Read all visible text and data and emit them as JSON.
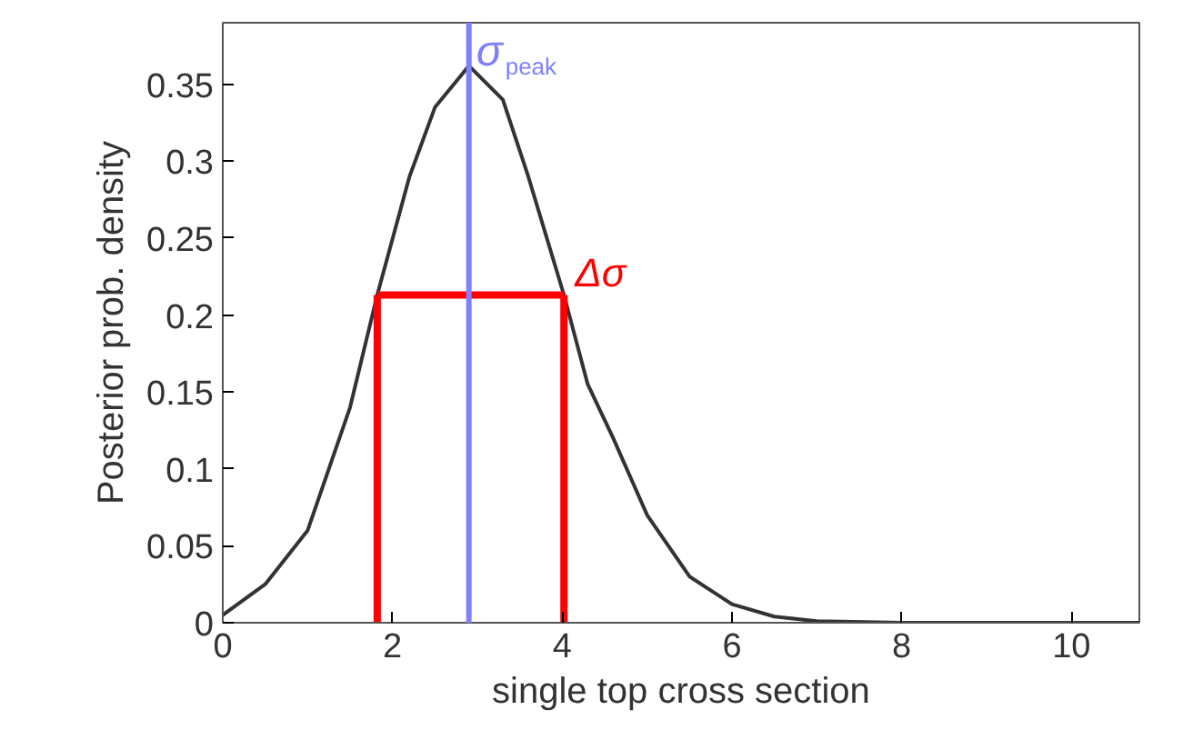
{
  "chart_data": {
    "type": "line",
    "xlabel": "single top cross section",
    "ylabel": "Posterior prob. density",
    "xlim": [
      0,
      10.8
    ],
    "ylim": [
      0,
      0.39
    ],
    "xticks": [
      0,
      2,
      4,
      6,
      8,
      10
    ],
    "yticks": [
      0,
      0.05,
      0.1,
      0.15,
      0.2,
      0.25,
      0.3,
      0.35
    ],
    "grid": false,
    "marker": "none",
    "line_style": "solid",
    "series": [
      {
        "color": "#333333",
        "x": [
          0,
          0.5,
          1,
          1.5,
          1.82,
          2.2,
          2.5,
          2.9,
          3.3,
          3.6,
          4.02,
          4.3,
          4.6,
          5,
          5.5,
          6,
          6.5,
          7,
          8,
          10.8
        ],
        "values": [
          0.005,
          0.025,
          0.06,
          0.14,
          0.213,
          0.29,
          0.335,
          0.362,
          0.34,
          0.29,
          0.213,
          0.155,
          0.12,
          0.07,
          0.03,
          0.012,
          0.004,
          0.001,
          0,
          0
        ]
      },
      {
        "color": "#ff0000",
        "x": [
          1.82,
          1.82
        ],
        "values": [
          0,
          0.213
        ]
      },
      {
        "color": "#ff0000",
        "x": [
          4.02,
          4.02
        ],
        "values": [
          0,
          0.213
        ]
      },
      {
        "color": "#ff0000",
        "x": [
          1.82,
          4.02
        ],
        "values": [
          0.213,
          0.213
        ]
      }
    ],
    "ref_lines": [
      {
        "axis": "x",
        "value": 2.9,
        "label": null,
        "color": "#8080ff"
      }
    ],
    "annotations": [
      {
        "text": "σ$_{peak}$",
        "x": 2.9,
        "y": 0.355
      },
      {
        "text": "Δσ",
        "x": 4.02,
        "y": 0.213
      }
    ]
  }
}
